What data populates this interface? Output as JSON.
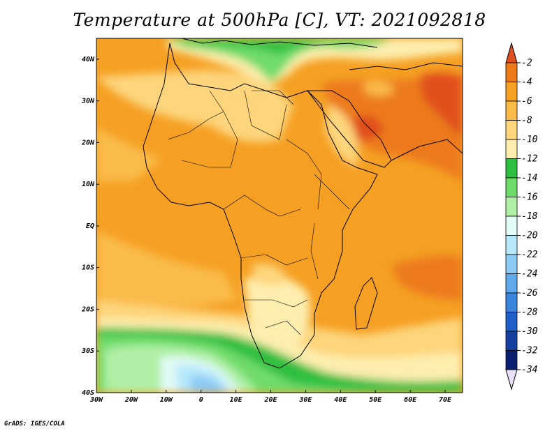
{
  "title": "Temperature at 500hPa [C], VT: 2021092818",
  "credit": "GrADS: IGES/COLA",
  "map": {
    "lon_range": [
      -30,
      75
    ],
    "lat_range": [
      -40,
      45
    ],
    "lon_ticks": [
      {
        "lon": -30,
        "label": "30W"
      },
      {
        "lon": -20,
        "label": "20W"
      },
      {
        "lon": -10,
        "label": "10W"
      },
      {
        "lon": 0,
        "label": "0"
      },
      {
        "lon": 10,
        "label": "10E"
      },
      {
        "lon": 20,
        "label": "20E"
      },
      {
        "lon": 30,
        "label": "30E"
      },
      {
        "lon": 40,
        "label": "40E"
      },
      {
        "lon": 50,
        "label": "50E"
      },
      {
        "lon": 60,
        "label": "60E"
      },
      {
        "lon": 70,
        "label": "70E"
      }
    ],
    "lat_ticks": [
      {
        "lat": 40,
        "label": "40N"
      },
      {
        "lat": 30,
        "label": "30N"
      },
      {
        "lat": 20,
        "label": "20N"
      },
      {
        "lat": 10,
        "label": "10N"
      },
      {
        "lat": 0,
        "label": "EQ"
      },
      {
        "lat": -10,
        "label": "10S"
      },
      {
        "lat": -20,
        "label": "20S"
      },
      {
        "lat": -30,
        "label": "30S"
      },
      {
        "lat": -40,
        "label": "40S"
      }
    ]
  },
  "colorbar": {
    "levels": [
      {
        "label": "-2",
        "color": "#e0501e"
      },
      {
        "label": "-4",
        "color": "#ec7a1a"
      },
      {
        "label": "-6",
        "color": "#f5a023"
      },
      {
        "label": "-8",
        "color": "#fabb48"
      },
      {
        "label": "-10",
        "color": "#fdd57c"
      },
      {
        "label": "-12",
        "color": "#fdeeae"
      },
      {
        "label": "-14",
        "color": "#2fbf40"
      },
      {
        "label": "-16",
        "color": "#6fdc6a"
      },
      {
        "label": "-18",
        "color": "#b0f0a6"
      },
      {
        "label": "-20",
        "color": "#e2fbf6"
      },
      {
        "label": "-22",
        "color": "#b8e8fb"
      },
      {
        "label": "-24",
        "color": "#8ccaf4"
      },
      {
        "label": "-26",
        "color": "#5eaaeb"
      },
      {
        "label": "-28",
        "color": "#3a85de"
      },
      {
        "label": "-30",
        "color": "#1f5fc7"
      },
      {
        "label": "-32",
        "color": "#1640a0"
      },
      {
        "label": "-34",
        "color": "#0c1f6e"
      }
    ],
    "top_arrow_color": "#e0501e",
    "bottom_arrow_color": "#e8e0f8"
  }
}
